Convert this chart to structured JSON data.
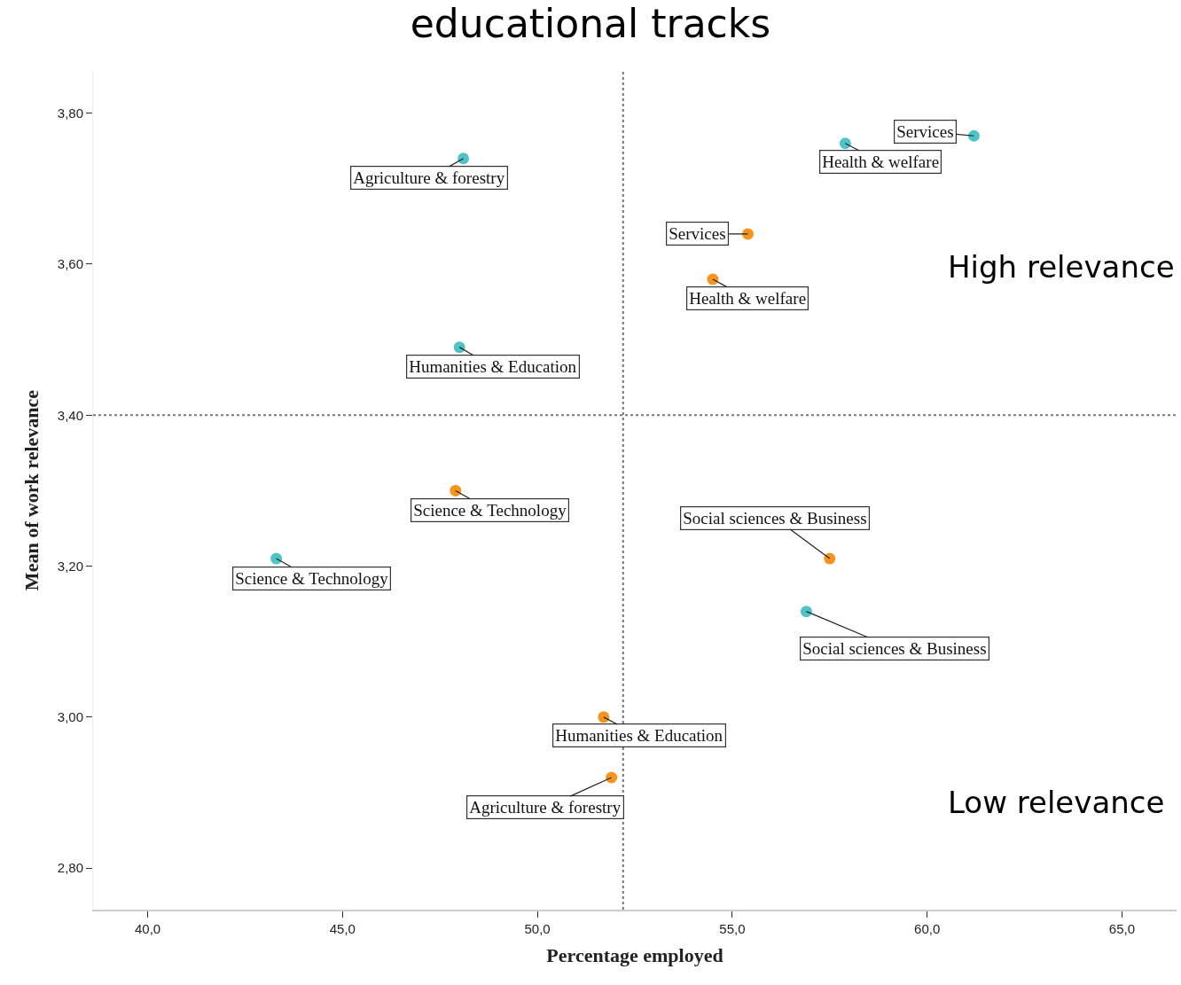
{
  "chart_data": {
    "type": "scatter",
    "title": "educational tracks",
    "xlabel": "Percentage employed",
    "ylabel": "Mean of work relevance",
    "xlim": [
      38.6,
      66.4
    ],
    "ylim": [
      2.745,
      3.856
    ],
    "xticks": [
      {
        "value": 40,
        "label": "40,0"
      },
      {
        "value": 45,
        "label": "45,0"
      },
      {
        "value": 50,
        "label": "50,0"
      },
      {
        "value": 55,
        "label": "55,0"
      },
      {
        "value": 60,
        "label": "60,0"
      },
      {
        "value": 65,
        "label": "65,0"
      }
    ],
    "yticks": [
      {
        "value": 2.8,
        "label": "2,80"
      },
      {
        "value": 3.0,
        "label": "3,00"
      },
      {
        "value": 3.2,
        "label": "3,20"
      },
      {
        "value": 3.4,
        "label": "3,40"
      },
      {
        "value": 3.6,
        "label": "3,60"
      },
      {
        "value": 3.8,
        "label": "3,80"
      }
    ],
    "marker": "circle",
    "series": [
      {
        "color": "#4fc3c6",
        "x": [
          61.2,
          57.9,
          48.1,
          48.0,
          43.3,
          56.9
        ],
        "values": [
          3.77,
          3.76,
          3.74,
          3.49,
          3.21,
          3.14
        ],
        "value_labels": [
          "Services",
          "Health & welfare",
          "Agriculture & forestry",
          "Humanities & Education",
          "Science & Technology",
          "Social sciences & Business"
        ]
      },
      {
        "color": "#f7941d",
        "x": [
          55.4,
          54.5,
          47.9,
          57.5,
          51.7,
          51.9
        ],
        "values": [
          3.64,
          3.58,
          3.3,
          3.21,
          3.0,
          2.92
        ],
        "value_labels": [
          "Services",
          "Health & welfare",
          "Science & Technology",
          "Social sciences & Business",
          "Humanities & Education",
          "Agriculture & forestry"
        ]
      }
    ],
    "ref_lines": [
      {
        "axis": "x",
        "value": 52.2,
        "color": "#777777",
        "line_style": "dotted"
      },
      {
        "axis": "y",
        "value": 3.4,
        "color": "#777777",
        "line_style": "dotted"
      }
    ],
    "annotations": [
      "High relevance",
      "Low relevance"
    ]
  }
}
